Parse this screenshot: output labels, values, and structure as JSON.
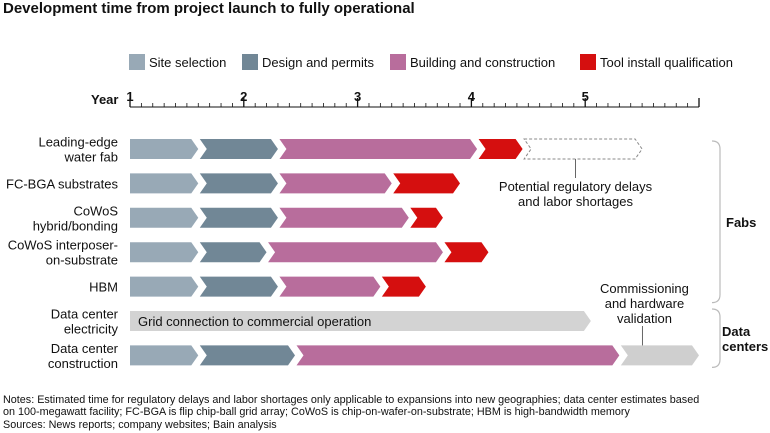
{
  "title": "Development time from project launch to fully operational",
  "notes": [
    "Notes: Estimated time for regulatory delays and labor shortages only applicable to expansions into new geographies; data center estimates based",
    "on 100-megawatt facility; FC-BGA is flip chip-ball grid array; CoWoS is chip-on-wafer-on-substrate; HBM is high-bandwidth memory",
    "Sources: News reports; company websites; Bain analysis"
  ],
  "chart_data": {
    "type": "bar",
    "orientation": "horizontal-stacked-timeline",
    "xlabel": "Year",
    "xlim": [
      1,
      6
    ],
    "x_ticks": [
      "1",
      "2",
      "3",
      "4",
      "5"
    ],
    "legend": {
      "placement": "top",
      "items": [
        {
          "key": "site",
          "label": "Site selection",
          "color": "#98a9b6"
        },
        {
          "key": "design",
          "label": "Design and permits",
          "color": "#718796"
        },
        {
          "key": "build",
          "label": "Building and construction",
          "color": "#b86d9c"
        },
        {
          "key": "tool",
          "label": "Tool install qualification",
          "color": "#d50f0f"
        }
      ]
    },
    "rows": [
      {
        "label": [
          "Leading-edge",
          "water fab"
        ],
        "segments": [
          {
            "phase": "site",
            "start": 1.0,
            "end": 1.6
          },
          {
            "phase": "design",
            "start": 1.6,
            "end": 2.3
          },
          {
            "phase": "build",
            "start": 2.3,
            "end": 4.05
          },
          {
            "phase": "tool",
            "start": 4.05,
            "end": 4.45
          },
          {
            "phase": "delay",
            "start": 4.45,
            "end": 5.5
          }
        ]
      },
      {
        "label": [
          "FC-BGA substrates"
        ],
        "segments": [
          {
            "phase": "site",
            "start": 1.0,
            "end": 1.6
          },
          {
            "phase": "design",
            "start": 1.6,
            "end": 2.3
          },
          {
            "phase": "build",
            "start": 2.3,
            "end": 3.3
          },
          {
            "phase": "tool",
            "start": 3.3,
            "end": 3.9
          }
        ]
      },
      {
        "label": [
          "CoWoS",
          "hybrid/bonding"
        ],
        "segments": [
          {
            "phase": "site",
            "start": 1.0,
            "end": 1.6
          },
          {
            "phase": "design",
            "start": 1.6,
            "end": 2.3
          },
          {
            "phase": "build",
            "start": 2.3,
            "end": 3.45
          },
          {
            "phase": "tool",
            "start": 3.45,
            "end": 3.75
          }
        ]
      },
      {
        "label": [
          "CoWoS interposer-",
          "on-substrate"
        ],
        "segments": [
          {
            "phase": "site",
            "start": 1.0,
            "end": 1.6
          },
          {
            "phase": "design",
            "start": 1.6,
            "end": 2.2
          },
          {
            "phase": "build",
            "start": 2.2,
            "end": 3.75
          },
          {
            "phase": "tool",
            "start": 3.75,
            "end": 4.15
          }
        ]
      },
      {
        "label": [
          "HBM"
        ],
        "segments": [
          {
            "phase": "site",
            "start": 1.0,
            "end": 1.6
          },
          {
            "phase": "design",
            "start": 1.6,
            "end": 2.3
          },
          {
            "phase": "build",
            "start": 2.3,
            "end": 3.2
          },
          {
            "phase": "tool",
            "start": 3.2,
            "end": 3.6
          }
        ]
      },
      {
        "label": [
          "Data center",
          "electricity"
        ],
        "segments": [
          {
            "phase": "grid",
            "start": 1.0,
            "end": 5.05,
            "text": "Grid connection to commercial operation"
          }
        ]
      },
      {
        "label": [
          "Data center",
          "construction"
        ],
        "segments": [
          {
            "phase": "site",
            "start": 1.0,
            "end": 1.6
          },
          {
            "phase": "design",
            "start": 1.6,
            "end": 2.45
          },
          {
            "phase": "build",
            "start": 2.45,
            "end": 5.3
          },
          {
            "phase": "commission",
            "start": 5.3,
            "end": 6.0
          }
        ]
      }
    ],
    "extra_colors": {
      "grid": "#d3d3d3",
      "commission": "#cfcfcf",
      "delay_stroke": "#8a8a8a"
    },
    "annotations": [
      {
        "text": [
          "Potential regulatory delays",
          "and labor shortages"
        ],
        "row": 0,
        "at_x": 4.95
      },
      {
        "text": [
          "Commissioning",
          "and hardware",
          "validation"
        ],
        "row": 6,
        "at_x": 5.6
      }
    ],
    "groups": [
      {
        "label": [
          "Fabs"
        ],
        "rows": [
          0,
          4
        ]
      },
      {
        "label": [
          "Data",
          "centers"
        ],
        "rows": [
          5,
          6
        ]
      }
    ]
  }
}
